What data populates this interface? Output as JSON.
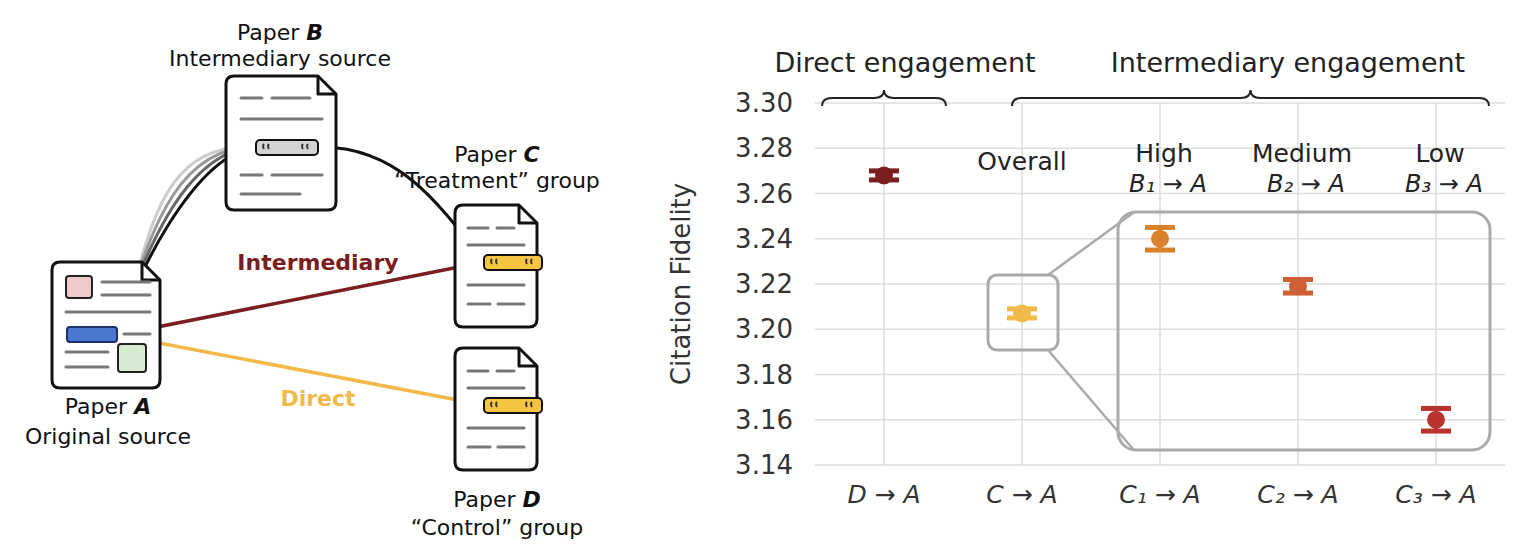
{
  "diagram": {
    "nodes": [
      {
        "label": "Paper A",
        "role": "Original source"
      },
      {
        "label": "Paper B",
        "role": "Intermediary source"
      },
      {
        "label": "Paper C",
        "role": "“Treatment” group"
      },
      {
        "label": "Paper D",
        "role": "“Control” group"
      }
    ],
    "edges": [
      {
        "from": 2,
        "to": 0,
        "label": "Intermediary",
        "color": "#7b1e22"
      },
      {
        "from": 3,
        "to": 0,
        "label": "Direct",
        "color": "#f0b94a"
      },
      {
        "from": 2,
        "to": 1
      },
      {
        "from": 1,
        "to": 0
      }
    ]
  },
  "chart_data": {
    "type": "errorbar",
    "y_label": "Citation Fidelity",
    "categories": [
      "D → A",
      "C → A",
      "C₁ → A",
      "C₂ → A",
      "C₃ → A"
    ],
    "values": [
      3.268,
      3.207,
      3.24,
      3.219,
      3.16
    ],
    "errors": [
      0.002,
      0.002,
      0.005,
      0.003,
      0.005
    ],
    "colors": [
      "#7b1e22",
      "#f0b94a",
      "#d9822b",
      "#cf6035",
      "#b8332e"
    ],
    "ylim": [
      3.14,
      3.3
    ],
    "yticks": [
      3.14,
      3.16,
      3.18,
      {
        "value": 3.2,
        "label": "3.20"
      },
      3.22,
      3.24,
      3.26,
      3.28,
      {
        "value": 3.3,
        "label": "3.30"
      }
    ],
    "grid": true,
    "annotations": [
      "Direct engagement",
      "Intermediary engagement",
      "Overall",
      "High",
      "B₁ → A",
      "Medium",
      "B₂ → A",
      "Low",
      "B₃ → A"
    ]
  }
}
